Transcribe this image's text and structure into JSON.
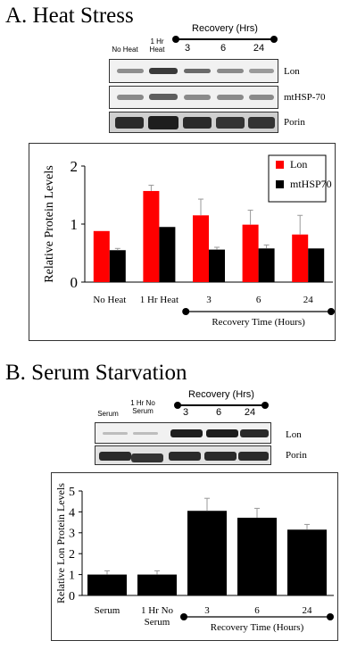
{
  "panel_a": {
    "title": "A. Heat Stress",
    "recovery_header": "Recovery (Hrs)",
    "lane_labels": [
      "No Heat",
      "1 Hr\nHeat",
      "3",
      "6",
      "24"
    ],
    "blot_labels": [
      "Lon",
      "mtHSP-70",
      "Porin"
    ]
  },
  "panel_b": {
    "title": "B. Serum Starvation",
    "recovery_header": "Recovery (Hrs)",
    "lane_labels": [
      "Serum",
      "1 Hr No\nSerum",
      "3",
      "6",
      "24"
    ],
    "blot_labels": [
      "Lon",
      "Porin"
    ]
  },
  "chart_data": [
    {
      "type": "bar",
      "ylabel": "Relative Protein Levels",
      "ylim": [
        0,
        2
      ],
      "yticks": [
        0,
        1,
        2
      ],
      "categories": [
        "No Heat",
        "1 Hr  Heat",
        "3",
        "6",
        "24"
      ],
      "bracket_label": "Recovery Time (Hours)",
      "series": [
        {
          "name": "Lon",
          "color": "#ff0000",
          "values": [
            0.88,
            1.57,
            1.15,
            0.99,
            0.82
          ],
          "errors": [
            0.0,
            0.1,
            0.28,
            0.25,
            0.33
          ]
        },
        {
          "name": "mtHSP70",
          "color": "#000000",
          "values": [
            0.55,
            0.95,
            0.56,
            0.58,
            0.58
          ],
          "errors": [
            0.03,
            0.0,
            0.04,
            0.06,
            0.0
          ]
        }
      ],
      "legend_position": "top-right",
      "grid": false
    },
    {
      "type": "bar",
      "ylabel": "Relative Lon Protein Levels",
      "ylim": [
        0,
        5
      ],
      "yticks": [
        0,
        1,
        2,
        3,
        4,
        5
      ],
      "categories": [
        "Serum",
        "1 Hr  No\nSerum",
        "3",
        "6",
        "24"
      ],
      "bracket_label": "Recovery Time (Hours)",
      "series": [
        {
          "name": "",
          "color": "#000000",
          "values": [
            1.0,
            1.0,
            4.05,
            3.72,
            3.15
          ],
          "errors": [
            0.18,
            0.18,
            0.6,
            0.45,
            0.25
          ]
        }
      ],
      "legend_position": "none",
      "grid": false
    }
  ]
}
